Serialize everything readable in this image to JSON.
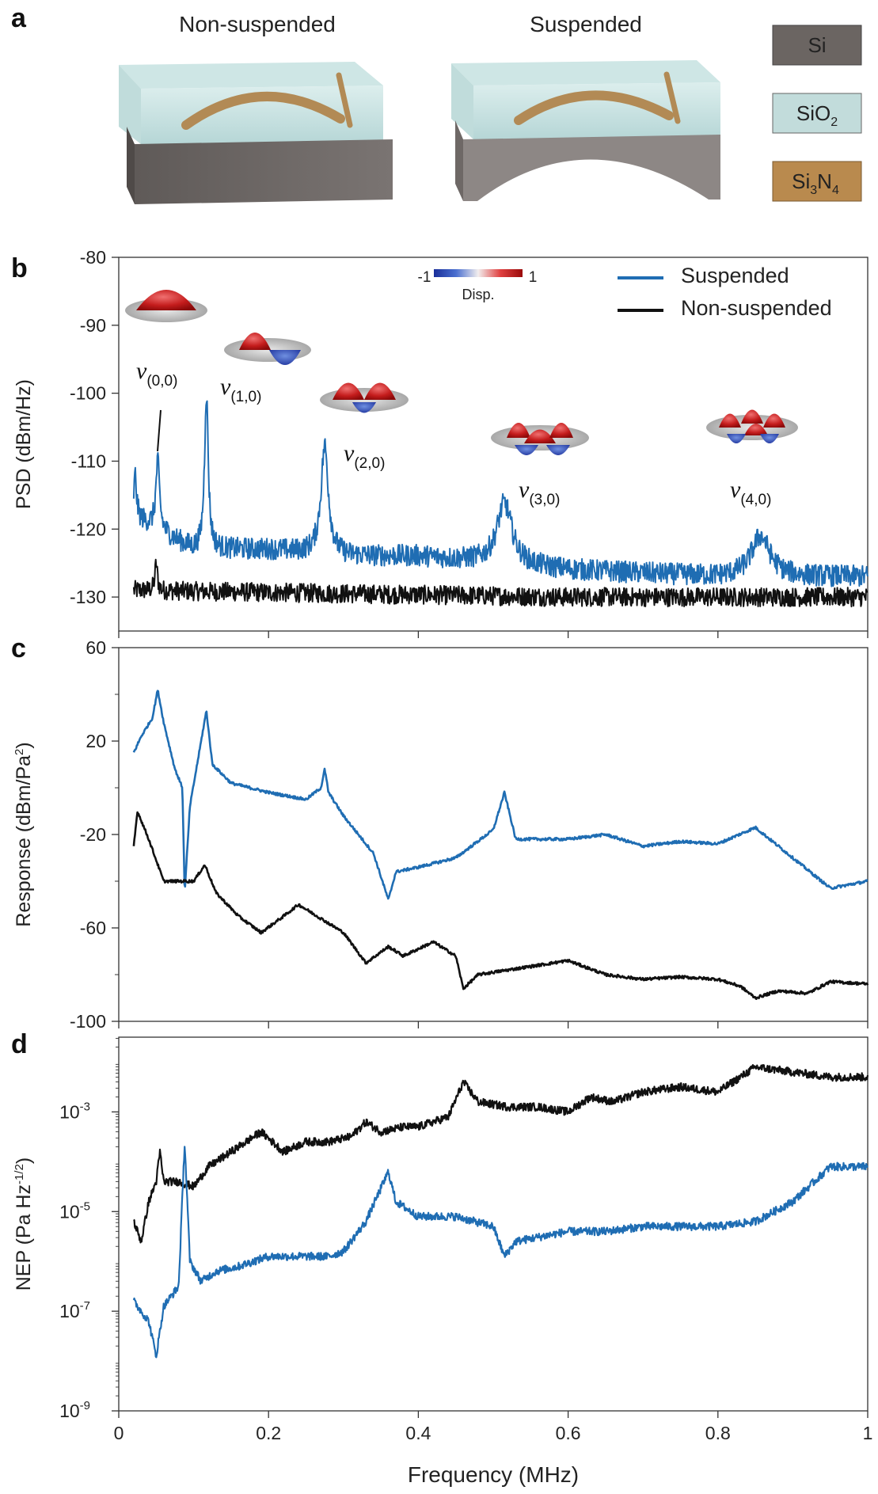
{
  "panel_a": {
    "label": "a",
    "title_left": "Non-suspended",
    "title_right": "Suspended",
    "materials": [
      {
        "name": "Si",
        "color": "#6b6562",
        "text_color": "#ffffff"
      },
      {
        "name": "SiO2",
        "base": "SiO",
        "sub": "2",
        "color": "#c2dcdb",
        "text_color": "#222222"
      },
      {
        "name": "Si3N4",
        "base": "Si",
        "sub1": "3",
        "mid": "N",
        "sub2": "4",
        "color": "#b98a4e",
        "text_color": "#ffffff"
      }
    ]
  },
  "colors": {
    "suspended": "#1f6db3",
    "non_suspended": "#111111"
  },
  "chart_data": [
    {
      "panel": "b",
      "type": "line",
      "xlabel": "",
      "ylabel": "PSD (dBm/Hz)",
      "xlim": [
        0,
        1
      ],
      "ylim": [
        -135,
        -80
      ],
      "yticks": [
        "-80",
        "-90",
        "-100",
        "-110",
        "-120",
        "-130"
      ],
      "ytick_values": [
        -80,
        -90,
        -100,
        -110,
        -120,
        -130
      ],
      "legend": [
        "Suspended",
        "Non-suspended"
      ],
      "colorbar": {
        "min_label": "-1",
        "max_label": "1",
        "label": "Disp."
      },
      "modes": [
        {
          "mode": "(0,0)",
          "freq": 0.052,
          "peak": -110
        },
        {
          "mode": "(1,0)",
          "freq": 0.117,
          "peak": -100
        },
        {
          "mode": "(2,0)",
          "freq": 0.275,
          "peak": -107
        },
        {
          "mode": "(3,0)",
          "freq": 0.515,
          "peak": -115
        },
        {
          "mode": "(4,0)",
          "freq": 0.857,
          "peak": -120
        }
      ],
      "series": [
        {
          "name": "Suspended",
          "baseline": [
            [
              0.02,
              -118
            ],
            [
              0.05,
              -120
            ],
            [
              0.1,
              -123
            ],
            [
              0.2,
              -123
            ],
            [
              0.3,
              -124
            ],
            [
              0.4,
              -124
            ],
            [
              0.6,
              -126
            ],
            [
              0.8,
              -127
            ],
            [
              1.0,
              -127
            ]
          ],
          "peaks": [
            [
              0.022,
              6,
              0.002
            ],
            [
              0.052,
              10,
              0.003
            ],
            [
              0.117,
              23,
              0.003
            ],
            [
              0.275,
              16,
              0.006
            ],
            [
              0.515,
              9,
              0.012
            ],
            [
              0.857,
              6,
              0.015
            ]
          ]
        },
        {
          "name": "Non-suspended",
          "baseline": [
            [
              0.02,
              -129
            ],
            [
              0.3,
              -129.5
            ],
            [
              0.6,
              -130
            ],
            [
              1.0,
              -130
            ]
          ],
          "peaks": [
            [
              0.05,
              4,
              0.002
            ]
          ]
        }
      ]
    },
    {
      "panel": "c",
      "type": "line",
      "xlabel": "",
      "ylabel": "Response (dBm/Pa",
      "ylabel_sup": "2",
      "ylabel_end": ")",
      "xlim": [
        0,
        1
      ],
      "ylim": [
        -100,
        60
      ],
      "yticks": [
        "60",
        "20",
        "-20",
        "-60",
        "-100"
      ],
      "ytick_values": [
        60,
        20,
        -20,
        -60,
        -100
      ],
      "series": [
        {
          "name": "Suspended",
          "points": [
            [
              0.02,
              15
            ],
            [
              0.03,
              22
            ],
            [
              0.045,
              30
            ],
            [
              0.052,
              42
            ],
            [
              0.06,
              28
            ],
            [
              0.075,
              8
            ],
            [
              0.085,
              0
            ],
            [
              0.088,
              -45
            ],
            [
              0.095,
              -8
            ],
            [
              0.11,
              20
            ],
            [
              0.117,
              33
            ],
            [
              0.125,
              10
            ],
            [
              0.15,
              2
            ],
            [
              0.2,
              -2
            ],
            [
              0.25,
              -5
            ],
            [
              0.27,
              0
            ],
            [
              0.275,
              8
            ],
            [
              0.28,
              -2
            ],
            [
              0.3,
              -12
            ],
            [
              0.34,
              -28
            ],
            [
              0.36,
              -48
            ],
            [
              0.37,
              -36
            ],
            [
              0.4,
              -34
            ],
            [
              0.45,
              -30
            ],
            [
              0.5,
              -18
            ],
            [
              0.515,
              -2
            ],
            [
              0.53,
              -22
            ],
            [
              0.6,
              -22
            ],
            [
              0.65,
              -20
            ],
            [
              0.7,
              -25
            ],
            [
              0.75,
              -23
            ],
            [
              0.8,
              -24
            ],
            [
              0.85,
              -17
            ],
            [
              0.9,
              -30
            ],
            [
              0.95,
              -43
            ],
            [
              1.0,
              -40
            ]
          ]
        },
        {
          "name": "Non-suspended",
          "points": [
            [
              0.02,
              -25
            ],
            [
              0.025,
              -10
            ],
            [
              0.04,
              -22
            ],
            [
              0.06,
              -40
            ],
            [
              0.08,
              -40
            ],
            [
              0.1,
              -40
            ],
            [
              0.115,
              -33
            ],
            [
              0.13,
              -45
            ],
            [
              0.16,
              -55
            ],
            [
              0.19,
              -62
            ],
            [
              0.22,
              -55
            ],
            [
              0.24,
              -50
            ],
            [
              0.27,
              -56
            ],
            [
              0.3,
              -62
            ],
            [
              0.33,
              -75
            ],
            [
              0.36,
              -68
            ],
            [
              0.38,
              -72
            ],
            [
              0.42,
              -66
            ],
            [
              0.45,
              -72
            ],
            [
              0.46,
              -86
            ],
            [
              0.48,
              -80
            ],
            [
              0.52,
              -78
            ],
            [
              0.6,
              -74
            ],
            [
              0.65,
              -80
            ],
            [
              0.7,
              -82
            ],
            [
              0.75,
              -81
            ],
            [
              0.8,
              -82
            ],
            [
              0.83,
              -85
            ],
            [
              0.85,
              -90
            ],
            [
              0.88,
              -87
            ],
            [
              0.92,
              -88
            ],
            [
              0.95,
              -83
            ],
            [
              1.0,
              -84
            ]
          ]
        }
      ]
    },
    {
      "panel": "d",
      "type": "line",
      "xlabel": "Frequency (MHz)",
      "ylabel": "NEP (Pa Hz",
      "ylabel_sup": "-1/2",
      "ylabel_end": ")",
      "xlim": [
        0,
        1
      ],
      "ylim_log10": [
        -9,
        -1.5
      ],
      "yticks": [
        {
          "base": "10",
          "exp": "-3",
          "log": -3
        },
        {
          "base": "10",
          "exp": "-5",
          "log": -5
        },
        {
          "base": "10",
          "exp": "-7",
          "log": -7
        },
        {
          "base": "10",
          "exp": "-9",
          "log": -9
        }
      ],
      "xticks": [
        "0",
        "0.2",
        "0.4",
        "0.6",
        "0.8",
        "1"
      ],
      "xtick_values": [
        0,
        0.2,
        0.4,
        0.6,
        0.8,
        1
      ],
      "series": [
        {
          "name": "Suspended",
          "points_log10": [
            [
              0.02,
              -6.8
            ],
            [
              0.04,
              -7.2
            ],
            [
              0.05,
              -7.9
            ],
            [
              0.06,
              -6.9
            ],
            [
              0.08,
              -6.5
            ],
            [
              0.088,
              -3.6
            ],
            [
              0.095,
              -6.0
            ],
            [
              0.11,
              -6.4
            ],
            [
              0.13,
              -6.2
            ],
            [
              0.16,
              -6.1
            ],
            [
              0.2,
              -5.9
            ],
            [
              0.25,
              -5.9
            ],
            [
              0.28,
              -5.9
            ],
            [
              0.3,
              -5.8
            ],
            [
              0.33,
              -5.2
            ],
            [
              0.36,
              -4.2
            ],
            [
              0.37,
              -4.8
            ],
            [
              0.4,
              -5.1
            ],
            [
              0.45,
              -5.1
            ],
            [
              0.5,
              -5.3
            ],
            [
              0.515,
              -5.9
            ],
            [
              0.53,
              -5.6
            ],
            [
              0.6,
              -5.4
            ],
            [
              0.65,
              -5.4
            ],
            [
              0.7,
              -5.3
            ],
            [
              0.75,
              -5.3
            ],
            [
              0.8,
              -5.3
            ],
            [
              0.85,
              -5.2
            ],
            [
              0.9,
              -4.8
            ],
            [
              0.95,
              -4.1
            ],
            [
              1.0,
              -4.1
            ]
          ]
        },
        {
          "name": "Non-suspended",
          "points_log10": [
            [
              0.02,
              -5.2
            ],
            [
              0.03,
              -5.6
            ],
            [
              0.04,
              -4.8
            ],
            [
              0.05,
              -4.4
            ],
            [
              0.055,
              -3.8
            ],
            [
              0.06,
              -4.4
            ],
            [
              0.08,
              -4.4
            ],
            [
              0.1,
              -4.5
            ],
            [
              0.12,
              -4.1
            ],
            [
              0.15,
              -3.8
            ],
            [
              0.19,
              -3.4
            ],
            [
              0.22,
              -3.8
            ],
            [
              0.25,
              -3.6
            ],
            [
              0.28,
              -3.6
            ],
            [
              0.31,
              -3.5
            ],
            [
              0.33,
              -3.2
            ],
            [
              0.35,
              -3.4
            ],
            [
              0.38,
              -3.3
            ],
            [
              0.4,
              -3.3
            ],
            [
              0.44,
              -3.1
            ],
            [
              0.46,
              -2.4
            ],
            [
              0.48,
              -2.8
            ],
            [
              0.52,
              -2.9
            ],
            [
              0.56,
              -2.9
            ],
            [
              0.6,
              -3.0
            ],
            [
              0.63,
              -2.7
            ],
            [
              0.66,
              -2.8
            ],
            [
              0.7,
              -2.6
            ],
            [
              0.75,
              -2.5
            ],
            [
              0.8,
              -2.6
            ],
            [
              0.85,
              -2.1
            ],
            [
              0.9,
              -2.2
            ],
            [
              0.95,
              -2.3
            ],
            [
              1.0,
              -2.3
            ]
          ]
        }
      ]
    }
  ]
}
